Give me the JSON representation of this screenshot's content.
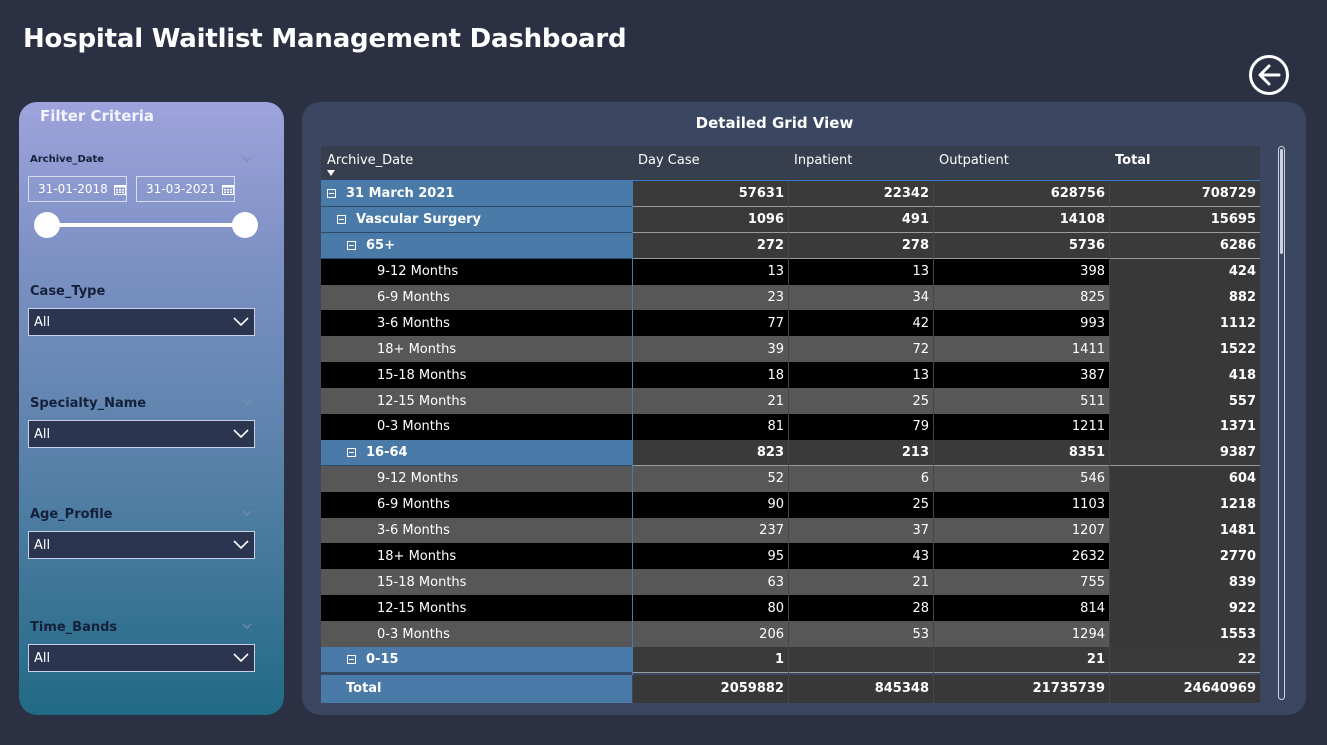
{
  "title": "Hospital Waitlist Management Dashboard",
  "filter": {
    "title": "Filter Criteria",
    "archive_date": {
      "label": "Archive_Date",
      "from": "31-01-2018",
      "to": "31-03-2021"
    },
    "case_type": {
      "label": "Case_Type",
      "value": "All"
    },
    "specialty_name": {
      "label": "Specialty_Name",
      "value": "All"
    },
    "age_profile": {
      "label": "Age_Profile",
      "value": "All"
    },
    "time_bands": {
      "label": "Time_Bands",
      "value": "All"
    }
  },
  "grid": {
    "title": "Detailed Grid View",
    "columns": [
      "Archive_Date",
      "Day Case",
      "Inpatient",
      "Outpatient",
      "Total"
    ],
    "rows": [
      {
        "label": "31 March 2021",
        "values": [
          "57631",
          "22342",
          "628756",
          "708729"
        ]
      },
      {
        "label": "Vascular Surgery",
        "values": [
          "1096",
          "491",
          "14108",
          "15695"
        ]
      },
      {
        "label": "65+",
        "values": [
          "272",
          "278",
          "5736",
          "6286"
        ]
      },
      {
        "label": "9-12 Months",
        "values": [
          "13",
          "13",
          "398",
          "424"
        ]
      },
      {
        "label": "6-9 Months",
        "values": [
          "23",
          "34",
          "825",
          "882"
        ]
      },
      {
        "label": "3-6 Months",
        "values": [
          "77",
          "42",
          "993",
          "1112"
        ]
      },
      {
        "label": "18+ Months",
        "values": [
          "39",
          "72",
          "1411",
          "1522"
        ]
      },
      {
        "label": "15-18 Months",
        "values": [
          "18",
          "13",
          "387",
          "418"
        ]
      },
      {
        "label": "12-15 Months",
        "values": [
          "21",
          "25",
          "511",
          "557"
        ]
      },
      {
        "label": "0-3 Months",
        "values": [
          "81",
          "79",
          "1211",
          "1371"
        ]
      },
      {
        "label": "16-64",
        "values": [
          "823",
          "213",
          "8351",
          "9387"
        ]
      },
      {
        "label": "9-12 Months",
        "values": [
          "52",
          "6",
          "546",
          "604"
        ]
      },
      {
        "label": "6-9 Months",
        "values": [
          "90",
          "25",
          "1103",
          "1218"
        ]
      },
      {
        "label": "3-6 Months",
        "values": [
          "237",
          "37",
          "1207",
          "1481"
        ]
      },
      {
        "label": "18+ Months",
        "values": [
          "95",
          "43",
          "2632",
          "2770"
        ]
      },
      {
        "label": "15-18 Months",
        "values": [
          "63",
          "21",
          "755",
          "839"
        ]
      },
      {
        "label": "12-15 Months",
        "values": [
          "80",
          "28",
          "814",
          "922"
        ]
      },
      {
        "label": "0-3 Months",
        "values": [
          "206",
          "53",
          "1294",
          "1553"
        ]
      },
      {
        "label": "0-15",
        "values": [
          "1",
          "",
          "21",
          "22"
        ]
      }
    ],
    "total": {
      "label": "Total",
      "values": [
        "2059882",
        "845348",
        "21735739",
        "24640969"
      ]
    }
  }
}
